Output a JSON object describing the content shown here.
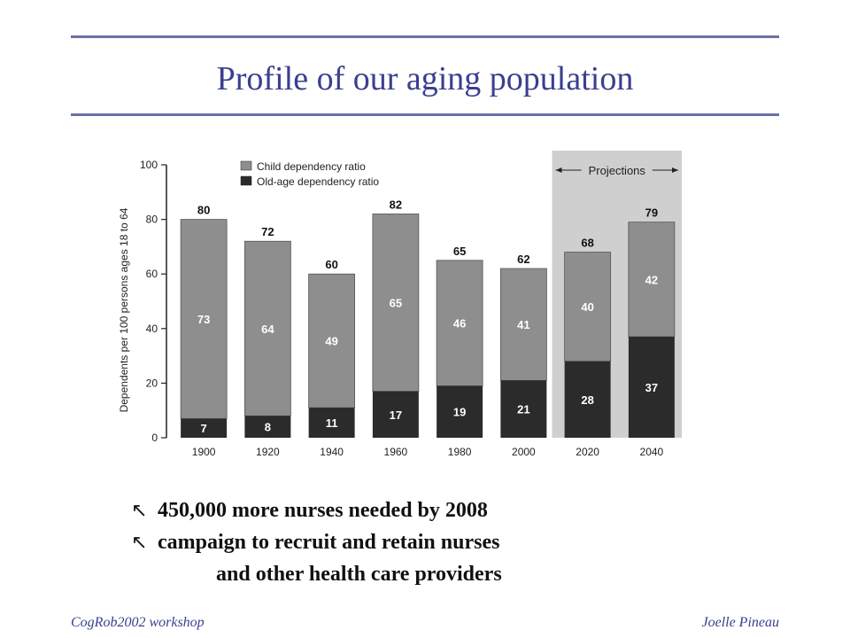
{
  "slide": {
    "title": "Profile of our aging population",
    "footer_left": "CogRob2002 workshop",
    "footer_right": "Joelle Pineau",
    "bullets": [
      {
        "mark": "↖",
        "text": "450,000 more nurses needed by 2008"
      },
      {
        "mark": "↖",
        "text": "campaign to recruit and retain nurses",
        "continuation": "and other health care providers"
      }
    ]
  },
  "chart_data": {
    "type": "bar",
    "stacked": true,
    "ylabel": "Dependents per 100 persons ages 18 to 64",
    "ylim": [
      0,
      100
    ],
    "yticks": [
      0,
      20,
      40,
      60,
      80,
      100
    ],
    "categories": [
      "1900",
      "1920",
      "1940",
      "1960",
      "1980",
      "2000",
      "2020",
      "2040"
    ],
    "series": [
      {
        "name": "Old-age dependency ratio",
        "values": [
          7,
          8,
          11,
          17,
          19,
          21,
          28,
          37
        ],
        "color": "#2b2b2b"
      },
      {
        "name": "Child dependency ratio",
        "values": [
          73,
          64,
          49,
          65,
          46,
          41,
          40,
          42
        ],
        "color": "#8e8e8e"
      }
    ],
    "totals": [
      80,
      72,
      60,
      82,
      65,
      62,
      68,
      79
    ],
    "projection": {
      "label": "Projections",
      "from": "2020",
      "to": "2040",
      "shade": "#cfcfcf"
    },
    "legend_position": "top-left"
  }
}
